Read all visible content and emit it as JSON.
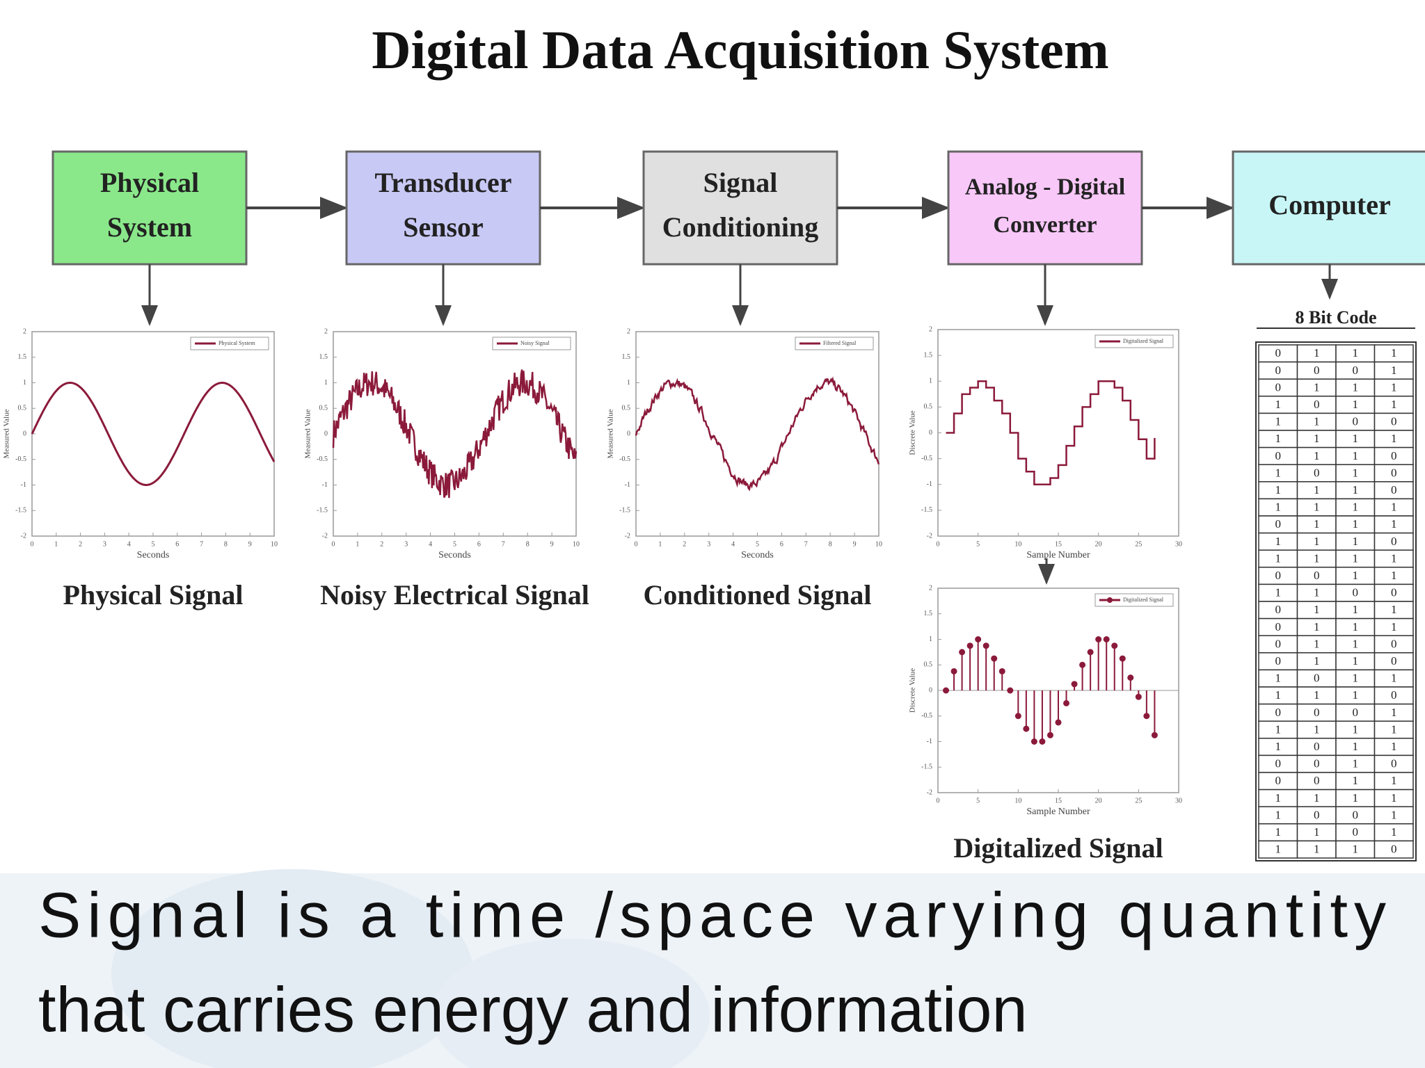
{
  "title": "Digital Data Acquisition System",
  "blocks": [
    {
      "lines": [
        "Physical",
        "System"
      ]
    },
    {
      "lines": [
        "Transducer",
        "Sensor"
      ]
    },
    {
      "lines": [
        "Signal",
        "Conditioning"
      ]
    },
    {
      "lines": [
        "Analog - Digital",
        "Converter"
      ]
    },
    {
      "lines": [
        "Computer"
      ]
    }
  ],
  "plots": [
    {
      "legend": "Physical System",
      "xlabel": "Seconds",
      "ylabel": "Measured Value",
      "xticks": [
        0,
        1,
        2,
        3,
        4,
        5,
        6,
        7,
        8,
        9,
        10
      ],
      "yticks": [
        -2,
        -1.5,
        -1,
        -0.5,
        0,
        0.5,
        1,
        1.5,
        2
      ],
      "caption": "Physical Signal"
    },
    {
      "legend": "Noisy Signal",
      "xlabel": "Seconds",
      "ylabel": "Measured Value",
      "xticks": [
        0,
        1,
        2,
        3,
        4,
        5,
        6,
        7,
        8,
        9,
        10
      ],
      "yticks": [
        -2,
        -1.5,
        -1,
        -0.5,
        0,
        0.5,
        1,
        1.5,
        2
      ],
      "caption": "Noisy Electrical Signal"
    },
    {
      "legend": "Filtered Signal",
      "xlabel": "Seconds",
      "ylabel": "Measured Value",
      "xticks": [
        0,
        1,
        2,
        3,
        4,
        5,
        6,
        7,
        8,
        9,
        10
      ],
      "yticks": [
        -2,
        -1.5,
        -1,
        -0.5,
        0,
        0.5,
        1,
        1.5,
        2
      ],
      "caption": "Conditioned Signal"
    },
    {
      "legend": "Digitalized Signal",
      "xlabel": "Sample Number",
      "ylabel": "Discrete Value",
      "xticks": [
        0,
        5,
        10,
        15,
        20,
        25,
        30
      ],
      "yticks": [
        -2,
        -1.5,
        -1,
        -0.5,
        0,
        0.5,
        1,
        1.5,
        2
      ]
    },
    {
      "legend": "Digitalized Signal",
      "xlabel": "Sample Number",
      "ylabel": "Discrete Value",
      "xticks": [
        0,
        5,
        10,
        15,
        20,
        25,
        30
      ],
      "yticks": [
        -2,
        -1.5,
        -1,
        -0.5,
        0,
        0.5,
        1,
        1.5,
        2
      ]
    }
  ],
  "digital_caption": "Digitalized Signal",
  "code_table": {
    "title": "8 Bit Code",
    "rows": [
      [
        0,
        1,
        1,
        1
      ],
      [
        0,
        0,
        0,
        1
      ],
      [
        0,
        1,
        1,
        1
      ],
      [
        1,
        0,
        1,
        1
      ],
      [
        1,
        1,
        0,
        0
      ],
      [
        1,
        1,
        1,
        1
      ],
      [
        0,
        1,
        1,
        0
      ],
      [
        1,
        0,
        1,
        0
      ],
      [
        1,
        1,
        1,
        0
      ],
      [
        1,
        1,
        1,
        1
      ],
      [
        0,
        1,
        1,
        1
      ],
      [
        1,
        1,
        1,
        0
      ],
      [
        1,
        1,
        1,
        1
      ],
      [
        0,
        0,
        1,
        1
      ],
      [
        1,
        1,
        0,
        0
      ],
      [
        0,
        1,
        1,
        1
      ],
      [
        0,
        1,
        1,
        1
      ],
      [
        0,
        1,
        1,
        0
      ],
      [
        0,
        1,
        1,
        0
      ],
      [
        1,
        0,
        1,
        1
      ],
      [
        1,
        1,
        1,
        0
      ],
      [
        0,
        0,
        0,
        1
      ],
      [
        1,
        1,
        1,
        1
      ],
      [
        1,
        0,
        1,
        1
      ],
      [
        0,
        0,
        1,
        0
      ],
      [
        0,
        0,
        1,
        1
      ],
      [
        1,
        1,
        1,
        1
      ],
      [
        1,
        0,
        0,
        1
      ],
      [
        1,
        1,
        0,
        1
      ],
      [
        1,
        1,
        1,
        0
      ]
    ]
  },
  "caption_lines": [
    "Signal is a time /space varying quantity",
    "that carries energy and information"
  ]
}
